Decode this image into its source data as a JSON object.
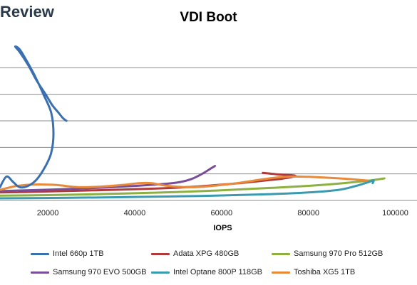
{
  "brand": "Review",
  "chart_data": {
    "type": "scatter",
    "title": "VDI Boot",
    "xlabel": "IOPS",
    "ylabel": "",
    "xlim": [
      9000,
      105000
    ],
    "ylim": [
      0,
      60
    ],
    "x_ticks": [
      20000,
      40000,
      60000,
      80000,
      100000
    ],
    "y_gridlines": [
      10,
      20,
      30,
      40,
      50
    ],
    "grid": "horizontal",
    "legend_position": "bottom",
    "series": [
      {
        "name": "Intel 660p 1TB",
        "color": "#3a6fb0",
        "points": [
          [
            9000,
            5
          ],
          [
            10500,
            9
          ],
          [
            12000,
            7
          ],
          [
            13500,
            5
          ],
          [
            15500,
            5.5
          ],
          [
            17500,
            8
          ],
          [
            19500,
            13
          ],
          [
            20800,
            18
          ],
          [
            21300,
            25
          ],
          [
            20800,
            33
          ],
          [
            19000,
            40
          ],
          [
            17000,
            47
          ],
          [
            15000,
            53
          ],
          [
            13500,
            57
          ],
          [
            12500,
            58
          ],
          [
            13500,
            56
          ],
          [
            15500,
            51
          ],
          [
            17500,
            45
          ],
          [
            19500,
            40
          ],
          [
            21000,
            36
          ],
          [
            22500,
            33
          ],
          [
            23500,
            31
          ],
          [
            24300,
            30
          ]
        ]
      },
      {
        "name": "Adata XPG 480GB",
        "color": "#b03a3a",
        "points": [
          [
            9000,
            3
          ],
          [
            15000,
            3.2
          ],
          [
            25000,
            3.6
          ],
          [
            35000,
            4
          ],
          [
            45000,
            4.5
          ],
          [
            52000,
            5
          ],
          [
            58000,
            5.7
          ],
          [
            64000,
            6.5
          ],
          [
            70000,
            7.5
          ],
          [
            74000,
            8.2
          ],
          [
            77000,
            9.3
          ],
          [
            73000,
            9.8
          ],
          [
            69500,
            10.4
          ]
        ]
      },
      {
        "name": "Samsung 970 Pro 512GB",
        "color": "#8db040",
        "points": [
          [
            9000,
            1.8
          ],
          [
            20000,
            2
          ],
          [
            30000,
            2.3
          ],
          [
            40000,
            2.7
          ],
          [
            50000,
            3.2
          ],
          [
            60000,
            3.8
          ],
          [
            70000,
            4.6
          ],
          [
            80000,
            5.5
          ],
          [
            88000,
            6.5
          ],
          [
            94000,
            7.5
          ],
          [
            97500,
            8.3
          ]
        ]
      },
      {
        "name": "Samsung 970 EVO 500GB",
        "color": "#7a4d9a",
        "points": [
          [
            9000,
            3.5
          ],
          [
            15000,
            3.8
          ],
          [
            25000,
            4.3
          ],
          [
            35000,
            5
          ],
          [
            45000,
            6
          ],
          [
            50000,
            6.8
          ],
          [
            53000,
            8
          ],
          [
            55500,
            10
          ],
          [
            57500,
            12
          ],
          [
            58500,
            13
          ]
        ]
      },
      {
        "name": "Intel Optane 800P 118GB",
        "color": "#3a9ab0",
        "points": [
          [
            9000,
            0.8
          ],
          [
            25000,
            1
          ],
          [
            40000,
            1.3
          ],
          [
            55000,
            1.7
          ],
          [
            70000,
            2.3
          ],
          [
            80000,
            3
          ],
          [
            87000,
            4
          ],
          [
            91000,
            5.5
          ],
          [
            94000,
            7
          ],
          [
            95000,
            7.6
          ],
          [
            94800,
            6.5
          ]
        ]
      },
      {
        "name": "Toshiba XG5 1TB",
        "color": "#e88a3a",
        "points": [
          [
            9000,
            4
          ],
          [
            13000,
            5.5
          ],
          [
            17000,
            6
          ],
          [
            22000,
            5.8
          ],
          [
            27000,
            5
          ],
          [
            32000,
            5.2
          ],
          [
            37000,
            5.8
          ],
          [
            41000,
            6.5
          ],
          [
            44000,
            6.5
          ],
          [
            47000,
            5.6
          ],
          [
            52000,
            5
          ],
          [
            56000,
            5.2
          ],
          [
            60000,
            5.8
          ],
          [
            64000,
            6.6
          ],
          [
            68000,
            7.6
          ],
          [
            72000,
            8.5
          ],
          [
            76000,
            9
          ],
          [
            80000,
            8.9
          ],
          [
            85000,
            8.5
          ],
          [
            90000,
            8
          ],
          [
            93500,
            7.5
          ]
        ]
      }
    ]
  }
}
